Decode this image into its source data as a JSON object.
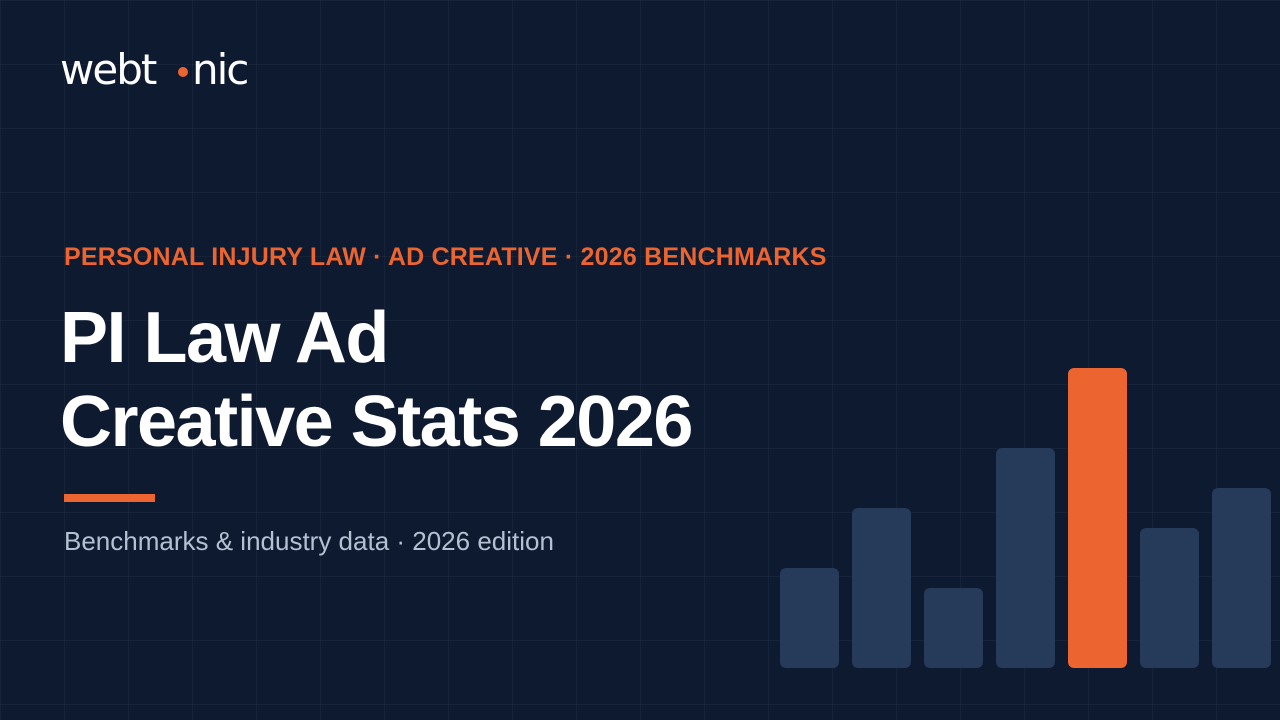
{
  "brand": {
    "logo_text": "webtonic",
    "logo_color": "#ffffff",
    "dot_color": "#ec6430"
  },
  "hero": {
    "eyebrow": "PERSONAL INJURY LAW · AD CREATIVE · 2026 BENCHMARKS",
    "headline_line1": "PI Law Ad",
    "headline_line2": "Creative Stats 2026",
    "subtitle": "Benchmarks & industry data · 2026 edition"
  },
  "colors": {
    "background": "#0d1a30",
    "accent": "#ec6430",
    "bar_muted": "#263a59",
    "subtitle": "#b5c0d2"
  },
  "decorative_bars": {
    "values": [
      100,
      160,
      80,
      220,
      300,
      140,
      180
    ],
    "max": 300,
    "highlight_index": 4
  }
}
